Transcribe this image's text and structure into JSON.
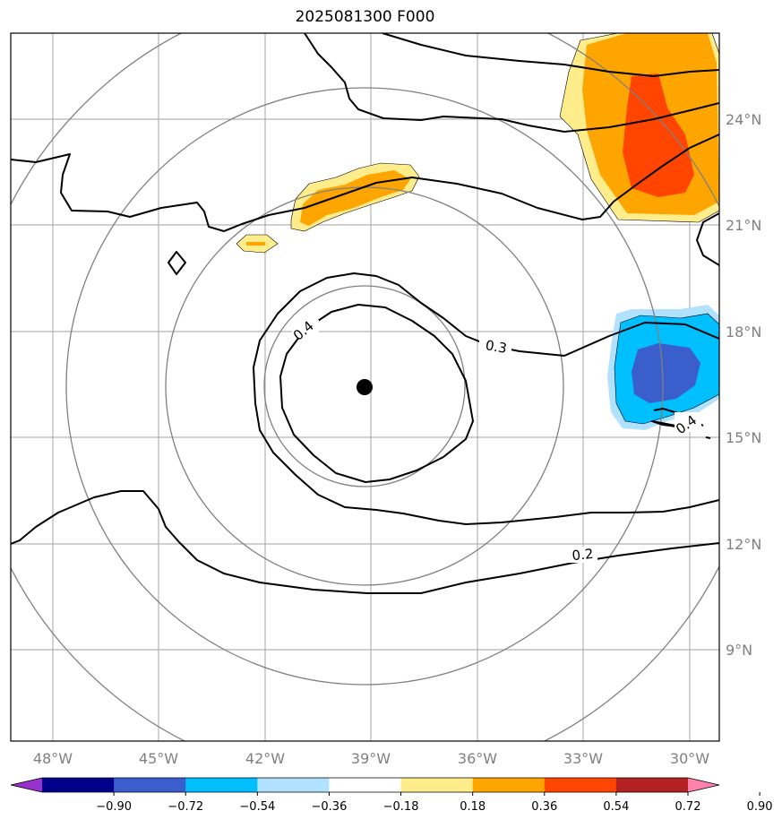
{
  "title": "2025081300 F000",
  "map": {
    "lon_ticks": [
      "48°W",
      "45°W",
      "42°W",
      "39°W",
      "36°W",
      "33°W",
      "30°W"
    ],
    "lat_ticks": [
      "24°N",
      "21°N",
      "18°N",
      "15°N",
      "12°N",
      "9°N"
    ],
    "contour_labels": [
      "0.4",
      "0.3",
      "0.4",
      "0.2"
    ],
    "center_marker": "storm-center",
    "range_rings": 4
  },
  "colorbar": {
    "ticks": [
      "−0.90",
      "−0.72",
      "−0.54",
      "−0.36",
      "−0.18",
      "0.18",
      "0.36",
      "0.54",
      "0.72",
      "0.90"
    ],
    "colors": [
      "#9932cc",
      "#00008b",
      "#3a5fcd",
      "#00bfff",
      "#b0e2ff",
      "#ffffff",
      "#ffec8b",
      "#ffa500",
      "#ff4500",
      "#b22222",
      "#ff82ab"
    ]
  }
}
